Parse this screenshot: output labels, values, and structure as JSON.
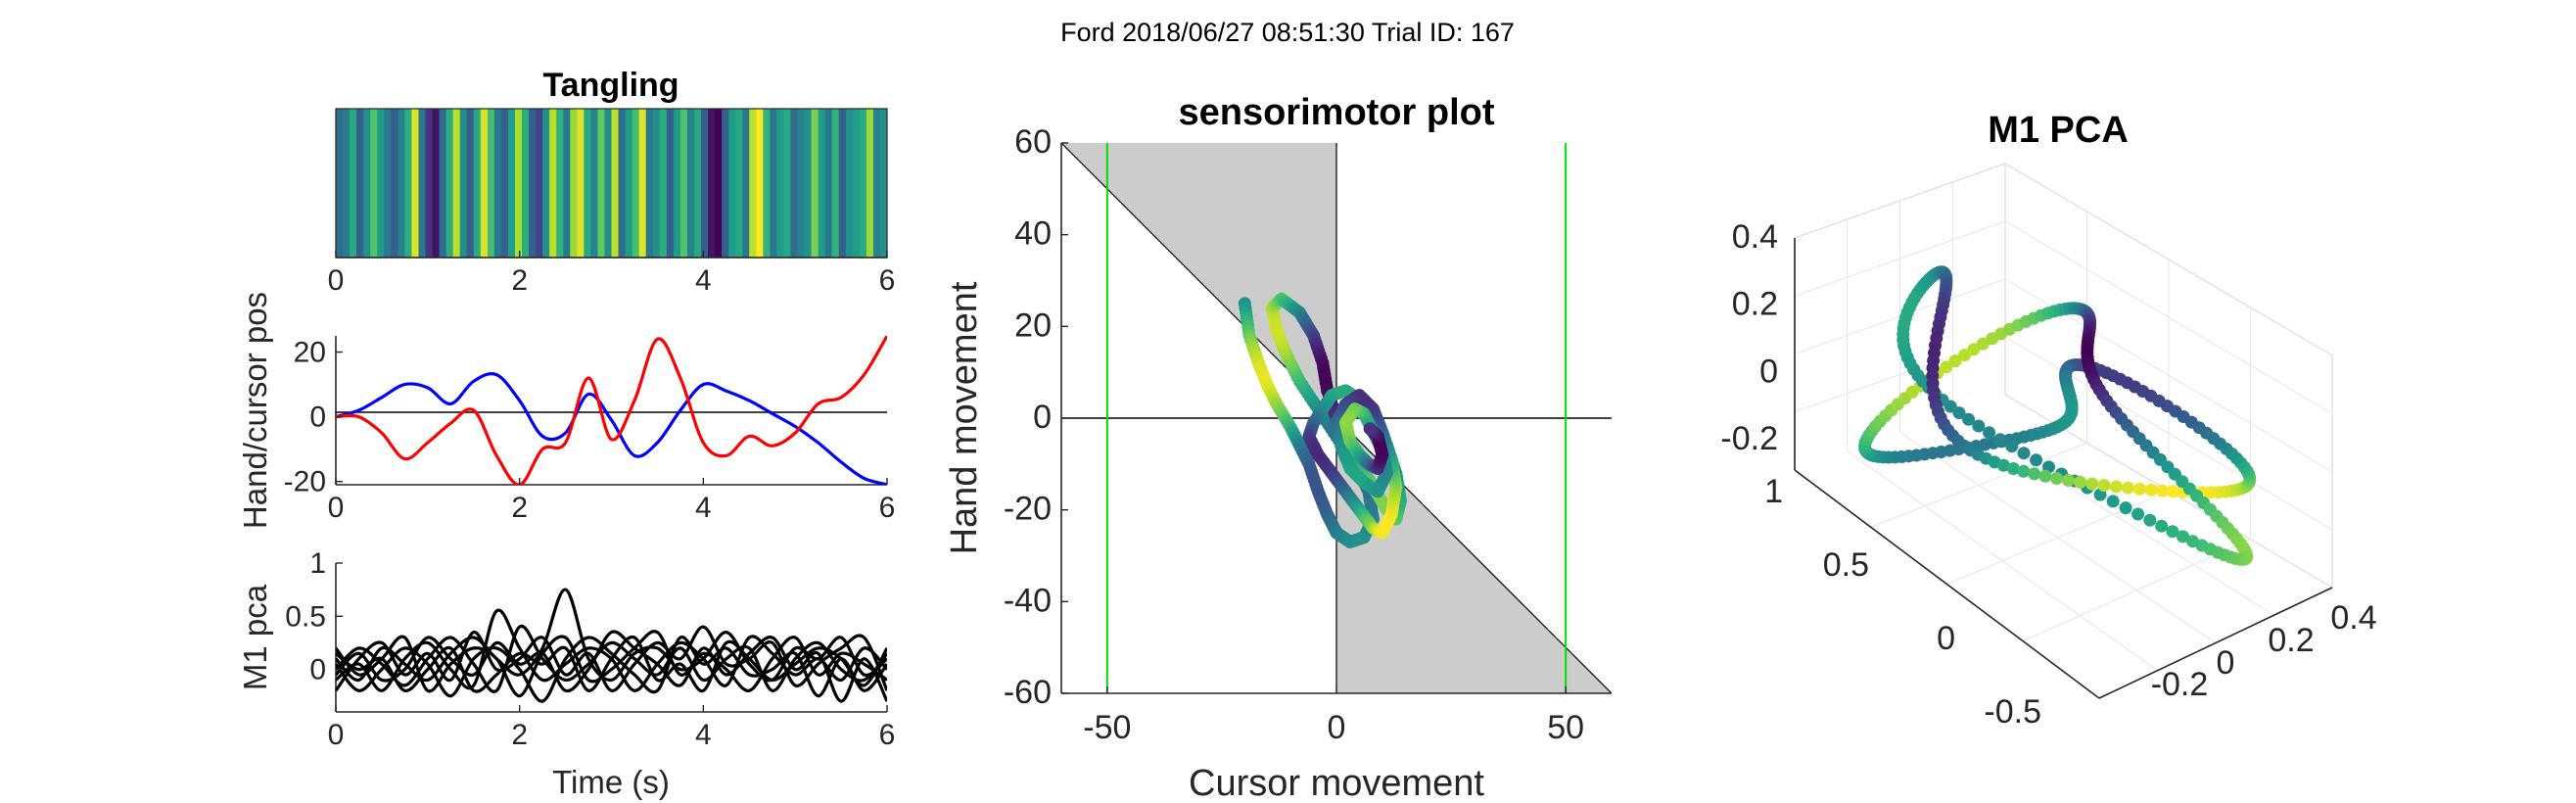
{
  "suptitle": "Ford 2018/06/27 08:51:30 Trial ID: 167",
  "colors": {
    "hand": "#0000ff",
    "cursor": "#ff0000",
    "pca": "#000000",
    "shade": "#cccccc",
    "target": "#00e000"
  },
  "chart_data": [
    {
      "type": "heatmap",
      "title": "Tangling",
      "xlim": [
        0,
        6
      ],
      "xticks": [
        "0",
        "2",
        "4",
        "6"
      ],
      "colormap": "viridis",
      "values": [
        0.35,
        0.42,
        0.6,
        0.3,
        0.5,
        0.72,
        0.55,
        0.4,
        0.3,
        0.45,
        0.62,
        0.95,
        0.4,
        0.15,
        0.05,
        0.35,
        0.62,
        0.9,
        0.5,
        0.3,
        0.6,
        0.95,
        0.7,
        0.4,
        0.3,
        0.55,
        0.88,
        0.62,
        0.3,
        0.2,
        0.5,
        0.9,
        0.65,
        0.4,
        0.85,
        0.95,
        0.6,
        0.45,
        0.75,
        0.5,
        0.9,
        0.35,
        0.55,
        0.7,
        0.95,
        0.4,
        0.5,
        0.62,
        0.3,
        0.55,
        0.72,
        0.45,
        0.6,
        0.3,
        0.05,
        0.0,
        0.3,
        0.55,
        0.6,
        0.4,
        0.9,
        1.0,
        0.65,
        0.4,
        0.55,
        0.6,
        0.35,
        0.45,
        0.5,
        0.8,
        0.55,
        0.4,
        0.65,
        0.3,
        0.5,
        0.55,
        0.6,
        0.85,
        0.45,
        0.5
      ]
    },
    {
      "type": "line",
      "title": "",
      "xlabel": "",
      "ylabel": "Hand/cursor pos",
      "xlim": [
        0,
        6
      ],
      "ylim": [
        -21,
        25
      ],
      "xticks": [
        "0",
        "2",
        "4",
        "6"
      ],
      "yticks": [
        "-20",
        "0",
        "20"
      ],
      "x": [
        0,
        0.25,
        0.5,
        0.75,
        1.0,
        1.25,
        1.5,
        1.75,
        2.0,
        2.25,
        2.5,
        2.75,
        3.0,
        3.25,
        3.5,
        3.75,
        4.0,
        4.25,
        4.5,
        4.75,
        5.0,
        5.25,
        5.5,
        5.75,
        6.0
      ],
      "series": [
        {
          "values": [
            0,
            2,
            6,
            10,
            9,
            4,
            11,
            13,
            5,
            -6,
            -5,
            7,
            -1,
            -12,
            -8,
            2,
            10,
            8,
            5,
            1,
            -3,
            -8,
            -14,
            -19,
            -21
          ]
        },
        {
          "values": [
            0,
            0,
            -5,
            -13,
            -8,
            -2,
            2,
            -12,
            -21,
            -10,
            -8,
            12,
            -7,
            5,
            24,
            12,
            -8,
            -12,
            -6,
            -9,
            -5,
            4,
            6,
            13,
            25
          ]
        }
      ]
    },
    {
      "type": "line",
      "title": "",
      "xlabel": "Time (s)",
      "ylabel": "M1 pca",
      "xlim": [
        0,
        6
      ],
      "ylim": [
        -0.4,
        1
      ],
      "xticks": [
        "0",
        "2",
        "4",
        "6"
      ],
      "yticks": [
        "0",
        "0.5",
        "1"
      ],
      "x": [
        0,
        0.25,
        0.5,
        0.75,
        1.0,
        1.25,
        1.5,
        1.75,
        2.0,
        2.25,
        2.5,
        2.75,
        3.0,
        3.25,
        3.5,
        3.75,
        4.0,
        4.25,
        4.5,
        4.75,
        5.0,
        5.25,
        5.5,
        5.75,
        6.0
      ],
      "series": [
        {
          "values": [
            0.1,
            -0.1,
            0.2,
            0.05,
            -0.1,
            0.15,
            0.3,
            0.1,
            -0.05,
            0.2,
            0.75,
            0.1,
            -0.1,
            0.15,
            0.2,
            0.0,
            0.1,
            0.35,
            0.05,
            -0.1,
            0.2,
            0.1,
            0.3,
            -0.05,
            0.1
          ]
        },
        {
          "values": [
            -0.1,
            0.05,
            -0.2,
            0.1,
            0.25,
            0.0,
            -0.15,
            0.55,
            0.2,
            -0.1,
            0.05,
            0.2,
            0.1,
            -0.2,
            0.05,
            0.25,
            0.1,
            -0.15,
            0.3,
            0.15,
            -0.05,
            0.1,
            -0.1,
            0.2,
            0.0
          ]
        },
        {
          "values": [
            0.0,
            0.2,
            0.05,
            -0.15,
            0.1,
            0.3,
            0.05,
            -0.2,
            0.4,
            0.1,
            -0.1,
            0.05,
            0.25,
            0.1,
            -0.05,
            0.2,
            -0.1,
            0.1,
            0.2,
            -0.2,
            0.1,
            0.25,
            0.0,
            -0.1,
            0.15
          ]
        },
        {
          "values": [
            0.2,
            -0.05,
            0.1,
            0.3,
            -0.2,
            0.05,
            0.2,
            0.1,
            -0.25,
            0.15,
            0.3,
            -0.1,
            0.0,
            0.2,
            0.35,
            -0.05,
            0.15,
            0.0,
            -0.2,
            0.1,
            0.3,
            -0.05,
            0.15,
            0.05,
            -0.1
          ]
        },
        {
          "values": [
            -0.2,
            0.1,
            0.25,
            -0.05,
            0.15,
            -0.1,
            0.35,
            0.0,
            0.1,
            0.3,
            -0.05,
            0.15,
            -0.2,
            0.05,
            0.25,
            0.1,
            0.4,
            0.05,
            0.1,
            0.25,
            -0.15,
            0.05,
            0.2,
            0.3,
            -0.2
          ]
        },
        {
          "values": [
            0.05,
            -0.2,
            0.0,
            0.2,
            0.05,
            -0.25,
            0.1,
            0.2,
            0.0,
            -0.3,
            0.1,
            0.3,
            0.15,
            -0.05,
            -0.2,
            0.3,
            0.05,
            0.2,
            -0.05,
            0.0,
            0.15,
            -0.25,
            0.1,
            -0.2,
            0.05
          ]
        },
        {
          "values": [
            -0.05,
            0.15,
            -0.1,
            0.0,
            0.3,
            0.1,
            -0.05,
            0.25,
            0.05,
            0.15,
            -0.2,
            0.0,
            0.35,
            0.2,
            0.05,
            -0.15,
            0.2,
            -0.05,
            0.15,
            0.3,
            0.0,
            0.15,
            -0.3,
            0.1,
            -0.3
          ]
        },
        {
          "values": [
            0.15,
            0.0,
            0.1,
            -0.2,
            0.0,
            0.2,
            -0.2,
            -0.05,
            0.15,
            0.05,
            0.2,
            -0.2,
            0.1,
            0.3,
            -0.1,
            0.05,
            -0.2,
            0.25,
            0.1,
            -0.1,
            0.05,
            0.2,
            0.1,
            -0.15,
            0.2
          ]
        }
      ]
    },
    {
      "type": "scatter",
      "title": "sensorimotor plot",
      "xlabel": "Cursor movement",
      "ylabel": "Hand movement",
      "xlim": [
        -60,
        60
      ],
      "ylim": [
        -60,
        60
      ],
      "xticks": [
        "-50",
        "0",
        "50"
      ],
      "yticks": [
        "-60",
        "-40",
        "-20",
        "0",
        "20",
        "40",
        "60"
      ],
      "target_lines_x": [
        -50,
        50
      ],
      "colormap": "viridis",
      "points": [
        [
          -20,
          25
        ],
        [
          -19,
          18
        ],
        [
          -17,
          12
        ],
        [
          -15,
          7
        ],
        [
          -13,
          3
        ],
        [
          -10,
          -2
        ],
        [
          -8,
          -6
        ],
        [
          -6,
          -10
        ],
        [
          -4,
          -16
        ],
        [
          -2,
          -21
        ],
        [
          0,
          -25
        ],
        [
          3,
          -27
        ],
        [
          6,
          -26
        ],
        [
          8,
          -22
        ],
        [
          7,
          -16
        ],
        [
          4,
          -10
        ],
        [
          0,
          -4
        ],
        [
          -4,
          2
        ],
        [
          -8,
          8
        ],
        [
          -11,
          14
        ],
        [
          -13,
          19
        ],
        [
          -14,
          24
        ],
        [
          -12,
          26
        ],
        [
          -8,
          23
        ],
        [
          -5,
          18
        ],
        [
          -3,
          12
        ],
        [
          -2,
          6
        ],
        [
          0,
          0
        ],
        [
          2,
          -5
        ],
        [
          5,
          -10
        ],
        [
          8,
          -15
        ],
        [
          11,
          -20
        ],
        [
          13,
          -22
        ],
        [
          14,
          -18
        ],
        [
          13,
          -12
        ],
        [
          11,
          -6
        ],
        [
          8,
          0
        ],
        [
          5,
          4
        ],
        [
          2,
          6
        ],
        [
          -1,
          5
        ],
        [
          -3,
          2
        ],
        [
          -5,
          -1
        ],
        [
          -6,
          -4
        ],
        [
          -4,
          -8
        ],
        [
          -1,
          -12
        ],
        [
          2,
          -16
        ],
        [
          5,
          -20
        ],
        [
          8,
          -24
        ],
        [
          10,
          -25
        ],
        [
          12,
          -21
        ],
        [
          13,
          -15
        ],
        [
          12,
          -9
        ],
        [
          10,
          -3
        ],
        [
          8,
          2
        ],
        [
          5,
          5
        ],
        [
          2,
          3
        ],
        [
          0,
          -1
        ],
        [
          1,
          -6
        ],
        [
          3,
          -11
        ],
        [
          6,
          -14
        ],
        [
          9,
          -16
        ],
        [
          11,
          -12
        ],
        [
          10,
          -7
        ],
        [
          8,
          -3
        ],
        [
          6,
          1
        ],
        [
          4,
          2
        ],
        [
          2,
          -1
        ],
        [
          3,
          -5
        ],
        [
          5,
          -8
        ],
        [
          7,
          -10
        ],
        [
          9,
          -11
        ],
        [
          10,
          -8
        ],
        [
          9,
          -4
        ],
        [
          7,
          -2
        ]
      ]
    },
    {
      "type": "scatter",
      "title": "M1 PCA",
      "xticks": [
        "-0.2",
        "0",
        "0.2",
        "0.4"
      ],
      "yticks": [
        "-0.5",
        "0",
        "0.5",
        "1"
      ],
      "zticks": [
        "-0.2",
        "0",
        "0.2",
        "0.4"
      ],
      "colormap": "viridis"
    }
  ]
}
